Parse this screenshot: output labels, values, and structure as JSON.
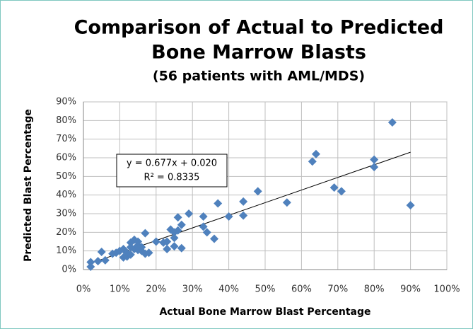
{
  "chart_data": {
    "type": "scatter",
    "title": [
      "Comparison of Actual to Predicted",
      "Bone Marrow Blasts"
    ],
    "subtitle": "(56 patients with AML/MDS)",
    "x_label": "Actual Bone Marrow Blast Percentage",
    "y_label": "Predicted Blast Percentage",
    "annotations": [
      "y = 0.677x + 0.020",
      "R² = 0.8335"
    ],
    "color": "#4f81bd",
    "grid": true,
    "xlim": [
      0,
      100
    ],
    "ylim": [
      0,
      90
    ],
    "xticks": [
      {
        "value": 0,
        "label": "0%"
      },
      {
        "value": 10,
        "label": "10%"
      },
      {
        "value": 20,
        "label": "20%"
      },
      {
        "value": 30,
        "label": "30%"
      },
      {
        "value": 40,
        "label": "40%"
      },
      {
        "value": 50,
        "label": "50%"
      },
      {
        "value": 60,
        "label": "60%"
      },
      {
        "value": 70,
        "label": "70%"
      },
      {
        "value": 80,
        "label": "80%"
      },
      {
        "value": 90,
        "label": "90%"
      },
      {
        "value": 100,
        "label": "100%"
      }
    ],
    "yticks": [
      {
        "value": 0,
        "label": "0%"
      },
      {
        "value": 10,
        "label": "10%"
      },
      {
        "value": 20,
        "label": "20%"
      },
      {
        "value": 30,
        "label": "30%"
      },
      {
        "value": 40,
        "label": "40%"
      },
      {
        "value": 50,
        "label": "50%"
      },
      {
        "value": 60,
        "label": "60%"
      },
      {
        "value": 70,
        "label": "70%"
      },
      {
        "value": 80,
        "label": "80%"
      },
      {
        "value": 90,
        "label": "90%"
      }
    ],
    "x": [
      2,
      2,
      4,
      5,
      6,
      8,
      9,
      10,
      11,
      11,
      12,
      12,
      13,
      13,
      14,
      14,
      15,
      15,
      16,
      16,
      17,
      17,
      20,
      22,
      23,
      24,
      25,
      25,
      25,
      26,
      27,
      27,
      29,
      33,
      33,
      34,
      36,
      37,
      40,
      44,
      44,
      48,
      56,
      63,
      64,
      69,
      71,
      80,
      80,
      85,
      90,
      13,
      15,
      18,
      23,
      26
    ],
    "values": [
      4,
      1.5,
      4.5,
      9.5,
      5,
      8.5,
      9,
      10,
      11,
      6.5,
      7,
      9,
      14.5,
      8,
      16,
      11,
      13,
      15,
      10,
      12,
      8.5,
      19.5,
      15,
      14.5,
      11,
      21.5,
      20,
      12.5,
      17,
      28,
      24,
      11.5,
      30,
      28.5,
      23,
      20,
      16.5,
      35.5,
      28.5,
      36.5,
      29,
      42,
      36,
      58,
      62,
      44,
      42,
      59,
      55,
      79,
      34.5,
      12,
      10.5,
      9,
      15,
      21
    ],
    "trendline": {
      "x": [
        2,
        90
      ],
      "y": [
        3.4,
        63
      ]
    }
  }
}
